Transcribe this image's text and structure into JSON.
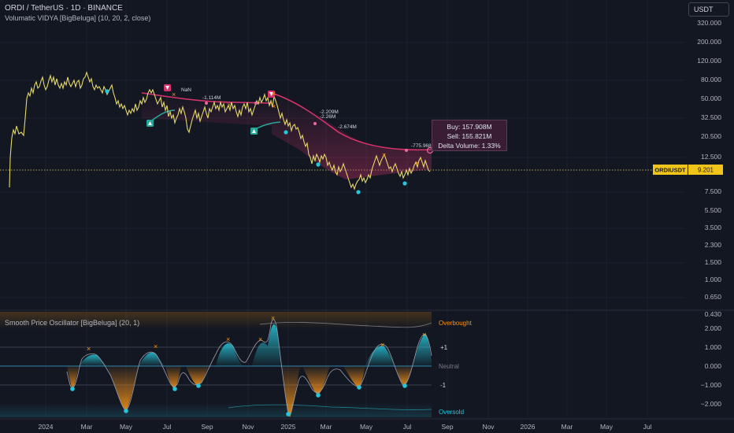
{
  "header": {
    "title": "ORDI / TetherUS · 1D · BINANCE",
    "indicator": "Volumatic VIDYA [BigBeluga] (10, 20, 2, close)",
    "currency": "USDT"
  },
  "price_axis": {
    "ticks": [
      "320.000",
      "200.000",
      "120.000",
      "80.000",
      "50.000",
      "32.500",
      "20.500",
      "12.500",
      "7.500",
      "5.500",
      "3.500",
      "2.300",
      "1.500",
      "1.000",
      "0.650",
      "0.430"
    ],
    "symbol_label": "ORDIUSDT",
    "last_price": "9.201"
  },
  "osc_axis": {
    "ticks": [
      "2.000",
      "1.000",
      "0.000",
      "−1.000",
      "−2.000"
    ]
  },
  "oscillator": {
    "title": "Smooth Price Oscillator [BigBeluga] (20, 1)",
    "overbought": "Overbought",
    "oversold": "Oversold",
    "plus1": "+1",
    "minus1": "-1",
    "neutral": "Neutral"
  },
  "time_axis": [
    "2024",
    "Mar",
    "May",
    "Jul",
    "Sep",
    "Nov",
    "2025",
    "Mar",
    "May",
    "Jul",
    "Sep",
    "Nov",
    "2026",
    "Mar",
    "May",
    "Jul"
  ],
  "annotations": [
    "NaN",
    "-1.114M",
    "-2.209M",
    "-2.26M",
    "-2.674M",
    "-775.968K"
  ],
  "tooltip": {
    "buy": "Buy: 157.908M",
    "sell": "Sell: 155.821M",
    "delta": "Delta Volume: 1.33%"
  },
  "colors": {
    "background": "#131722",
    "candle": "#e6d96a",
    "bear_vidya": "#d6336c",
    "bull_vidya": "#26a69a",
    "accent_orange": "#f7931a",
    "accent_cyan": "#26c6da"
  }
}
